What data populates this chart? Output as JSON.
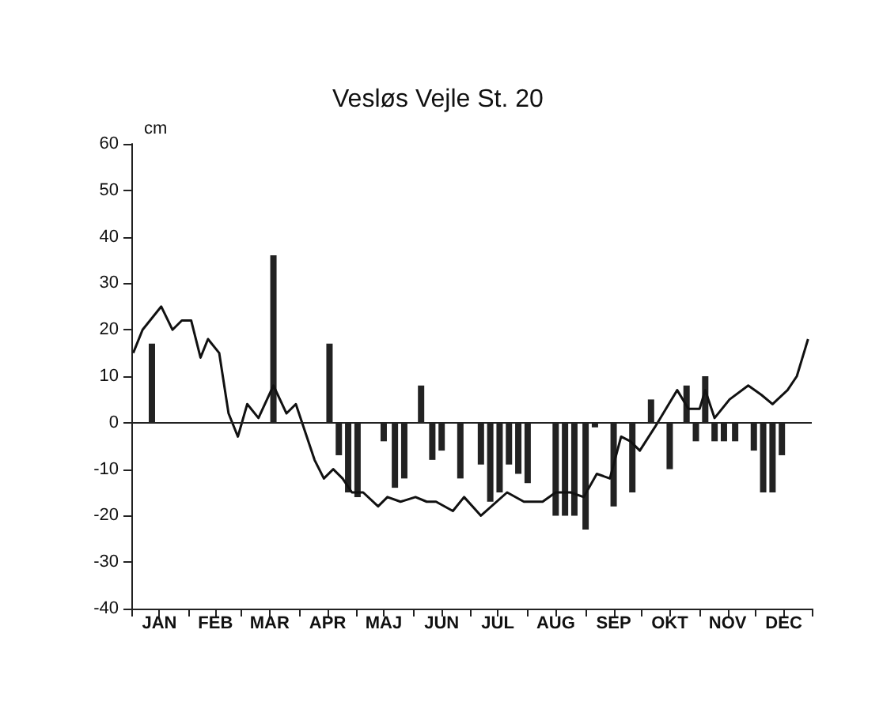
{
  "chart_data": {
    "type": "bar",
    "title": "Vesløs Vejle St. 20",
    "ylabel": "cm",
    "xlim": [
      "--01-01",
      "--12-31"
    ],
    "xticks": [
      {
        "value": "--01-01",
        "label": null
      },
      {
        "value": "--01-16",
        "label": "JAN"
      },
      {
        "value": "--02-01",
        "label": null
      },
      {
        "value": "--02-15",
        "label": "FEB"
      },
      {
        "value": "--03-01",
        "label": null
      },
      {
        "value": "--03-16",
        "label": "MAR"
      },
      {
        "value": "--04-01",
        "label": null
      },
      {
        "value": "--04-16",
        "label": "APR"
      },
      {
        "value": "--05-01",
        "label": null
      },
      {
        "value": "--05-16",
        "label": "MAJ"
      },
      {
        "value": "--06-01",
        "label": null
      },
      {
        "value": "--06-16",
        "label": "JUN"
      },
      {
        "value": "--07-01",
        "label": null
      },
      {
        "value": "--07-16",
        "label": "JUL"
      },
      {
        "value": "--08-01",
        "label": null
      },
      {
        "value": "--08-16",
        "label": "AUG"
      },
      {
        "value": "--09-01",
        "label": null
      },
      {
        "value": "--09-16",
        "label": "SEP"
      },
      {
        "value": "--10-01",
        "label": null
      },
      {
        "value": "--10-16",
        "label": "OKT"
      },
      {
        "value": "--11-01",
        "label": null
      },
      {
        "value": "--11-16",
        "label": "NOV"
      },
      {
        "value": "--12-01",
        "label": null
      },
      {
        "value": "--12-16",
        "label": "DEC"
      },
      {
        "value": "--12-31",
        "label": null
      }
    ],
    "ylim": [
      -40,
      60
    ],
    "yticks": [
      -40,
      -30,
      -20,
      -10,
      0,
      10,
      20,
      30,
      40,
      50,
      60
    ],
    "grid": false,
    "marker": "none",
    "line_style": "solid",
    "ref_lines": [
      {
        "axis": "y",
        "value": 0,
        "label": null,
        "color": "#222222"
      }
    ],
    "series": [
      {
        "color": "#222222",
        "x": [
          "--01-12",
          "--03-18",
          "--04-17",
          "--04-22",
          "--04-27",
          "--05-02",
          "--05-16",
          "--05-22",
          "--05-27",
          "--06-05",
          "--06-11",
          "--06-16",
          "--06-26",
          "--07-07",
          "--07-12",
          "--07-17",
          "--07-22",
          "--07-27",
          "--08-01",
          "--08-16",
          "--08-21",
          "--08-26",
          "--09-01",
          "--09-06",
          "--09-16",
          "--09-26",
          "--10-06",
          "--10-16",
          "--10-25",
          "--10-30",
          "--11-04",
          "--11-09",
          "--11-14",
          "--11-20",
          "--11-30",
          "--12-05",
          "--12-10",
          "--12-15"
        ],
        "values": [
          17,
          36,
          17,
          -7,
          -15,
          -16,
          -4,
          -14,
          -12,
          8,
          -8,
          -6,
          -12,
          -9,
          -17,
          -15,
          -9,
          -11,
          -13,
          -20,
          -20,
          -20,
          -23,
          -1,
          -18,
          -15,
          5,
          -10,
          8,
          -4,
          10,
          -4,
          -4,
          -4,
          -6,
          -15,
          -15,
          -7
        ]
      },
      {
        "type": "line",
        "color": "#111111",
        "x": [
          "--01-02",
          "--01-07",
          "--01-17",
          "--01-23",
          "--01-28",
          "--02-02",
          "--02-07",
          "--02-11",
          "--02-17",
          "--02-22",
          "--02-27",
          "--03-04",
          "--03-10",
          "--03-18",
          "--03-25",
          "--03-30",
          "--04-09",
          "--04-14",
          "--04-19",
          "--04-24",
          "--04-29",
          "--05-05",
          "--05-13",
          "--05-18",
          "--05-25",
          "--06-02",
          "--06-08",
          "--06-13",
          "--06-22",
          "--06-28",
          "--07-07",
          "--07-21",
          "--07-30",
          "--08-09",
          "--08-16",
          "--08-24",
          "--08-31",
          "--09-07",
          "--09-14",
          "--09-20",
          "--09-25",
          "--09-30",
          "--10-08",
          "--10-20",
          "--10-26",
          "--11-01",
          "--11-04",
          "--11-09",
          "--11-17",
          "--11-27",
          "--12-04",
          "--12-10",
          "--12-18",
          "--12-23",
          "--12-29"
        ],
        "values": [
          15,
          20,
          25,
          20,
          22,
          22,
          14,
          18,
          15,
          2,
          -3,
          4,
          1,
          8,
          2,
          4,
          -8,
          -12,
          -10,
          -12,
          -15,
          -15,
          -18,
          -16,
          -17,
          -16,
          -17,
          -17,
          -19,
          -16,
          -20,
          -15,
          -17,
          -17,
          -15,
          -15,
          -16,
          -11,
          -12,
          -3,
          -4,
          -6,
          -1,
          7,
          3,
          3,
          7,
          1,
          5,
          8,
          6,
          4,
          7,
          10,
          18
        ]
      }
    ]
  }
}
